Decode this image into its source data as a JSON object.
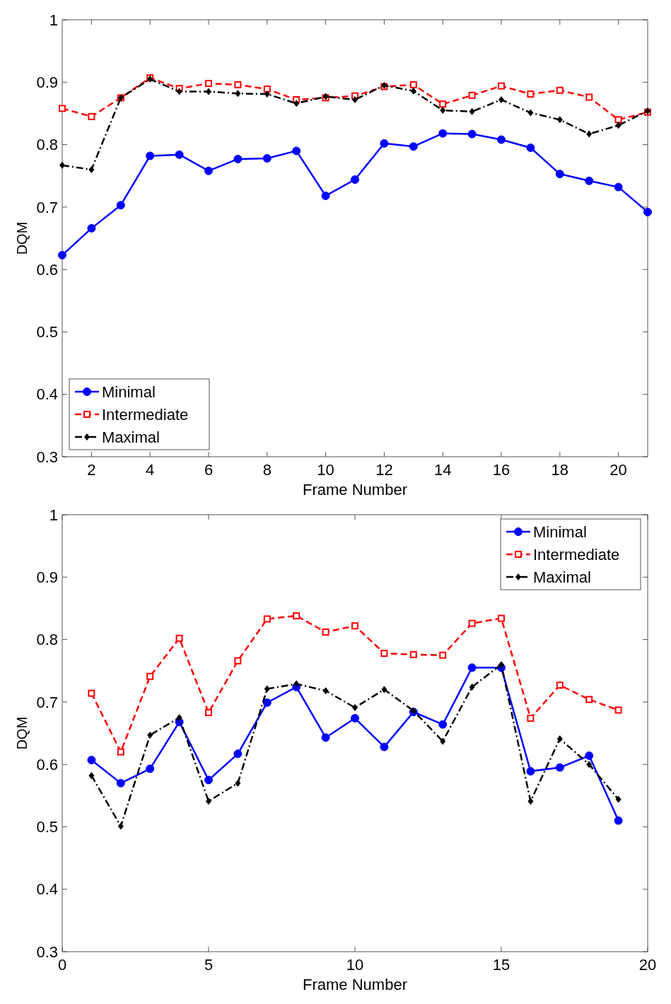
{
  "chart_data": [
    {
      "type": "line",
      "xlabel": "Frame Number",
      "ylabel": "DQM",
      "x": [
        1,
        2,
        3,
        4,
        5,
        6,
        7,
        8,
        9,
        10,
        11,
        12,
        13,
        14,
        15,
        16,
        17,
        18,
        19,
        20,
        21
      ],
      "xlim": [
        1,
        21
      ],
      "xticks": [
        2,
        4,
        6,
        8,
        10,
        12,
        14,
        16,
        18,
        20
      ],
      "ylim": [
        0.3,
        1
      ],
      "yticks": [
        0.3,
        0.4,
        0.5,
        0.6,
        0.7,
        0.8,
        0.9,
        1
      ],
      "legend": "bottom left",
      "series": [
        {
          "name": "Minimal",
          "color": "#0000ff",
          "marker": "circle",
          "line_style": "solid",
          "values": [
            0.623,
            0.666,
            0.703,
            0.782,
            0.784,
            0.758,
            0.777,
            0.778,
            0.79,
            0.718,
            0.744,
            0.802,
            0.797,
            0.818,
            0.817,
            0.808,
            0.795,
            0.753,
            0.742,
            0.732,
            0.692
          ]
        },
        {
          "name": "Intermediate",
          "color": "#ff0000",
          "marker": "square",
          "line_style": "dashed",
          "values": [
            0.858,
            0.845,
            0.875,
            0.907,
            0.89,
            0.898,
            0.896,
            0.889,
            0.872,
            0.875,
            0.878,
            0.893,
            0.896,
            0.865,
            0.879,
            0.894,
            0.881,
            0.887,
            0.876,
            0.84,
            0.852
          ]
        },
        {
          "name": "Maximal",
          "color": "#000000",
          "marker": "diamond",
          "line_style": "dashdot",
          "values": [
            0.767,
            0.76,
            0.875,
            0.905,
            0.885,
            0.885,
            0.882,
            0.881,
            0.866,
            0.877,
            0.872,
            0.895,
            0.886,
            0.855,
            0.853,
            0.872,
            0.851,
            0.84,
            0.817,
            0.831,
            0.854
          ]
        }
      ]
    },
    {
      "type": "line",
      "xlabel": "Frame Number",
      "ylabel": "DQM",
      "x": [
        1,
        2,
        3,
        4,
        5,
        6,
        7,
        8,
        9,
        10,
        11,
        12,
        13,
        14,
        15,
        16,
        17,
        18,
        19
      ],
      "xlim": [
        0,
        20
      ],
      "xticks": [
        0,
        5,
        10,
        15,
        20
      ],
      "ylim": [
        0.3,
        1
      ],
      "yticks": [
        0.3,
        0.4,
        0.5,
        0.6,
        0.7,
        0.8,
        0.9,
        1
      ],
      "legend": "top right",
      "series": [
        {
          "name": "Minimal",
          "color": "#0000ff",
          "marker": "circle",
          "line_style": "solid",
          "values": [
            0.607,
            0.57,
            0.593,
            0.668,
            0.575,
            0.617,
            0.699,
            0.724,
            0.643,
            0.674,
            0.628,
            0.684,
            0.664,
            0.755,
            0.755,
            0.589,
            0.595,
            0.614,
            0.51
          ]
        },
        {
          "name": "Intermediate",
          "color": "#ff0000",
          "marker": "square",
          "line_style": "dashed",
          "values": [
            0.714,
            0.62,
            0.741,
            0.802,
            0.683,
            0.766,
            0.833,
            0.838,
            0.812,
            0.822,
            0.778,
            0.776,
            0.775,
            0.826,
            0.834,
            0.674,
            0.727,
            0.704,
            0.687
          ]
        },
        {
          "name": "Maximal",
          "color": "#000000",
          "marker": "diamond",
          "line_style": "dashdot",
          "values": [
            0.582,
            0.501,
            0.647,
            0.675,
            0.541,
            0.57,
            0.721,
            0.729,
            0.718,
            0.691,
            0.72,
            0.686,
            0.637,
            0.724,
            0.76,
            0.541,
            0.641,
            0.6,
            0.544
          ]
        }
      ]
    }
  ]
}
